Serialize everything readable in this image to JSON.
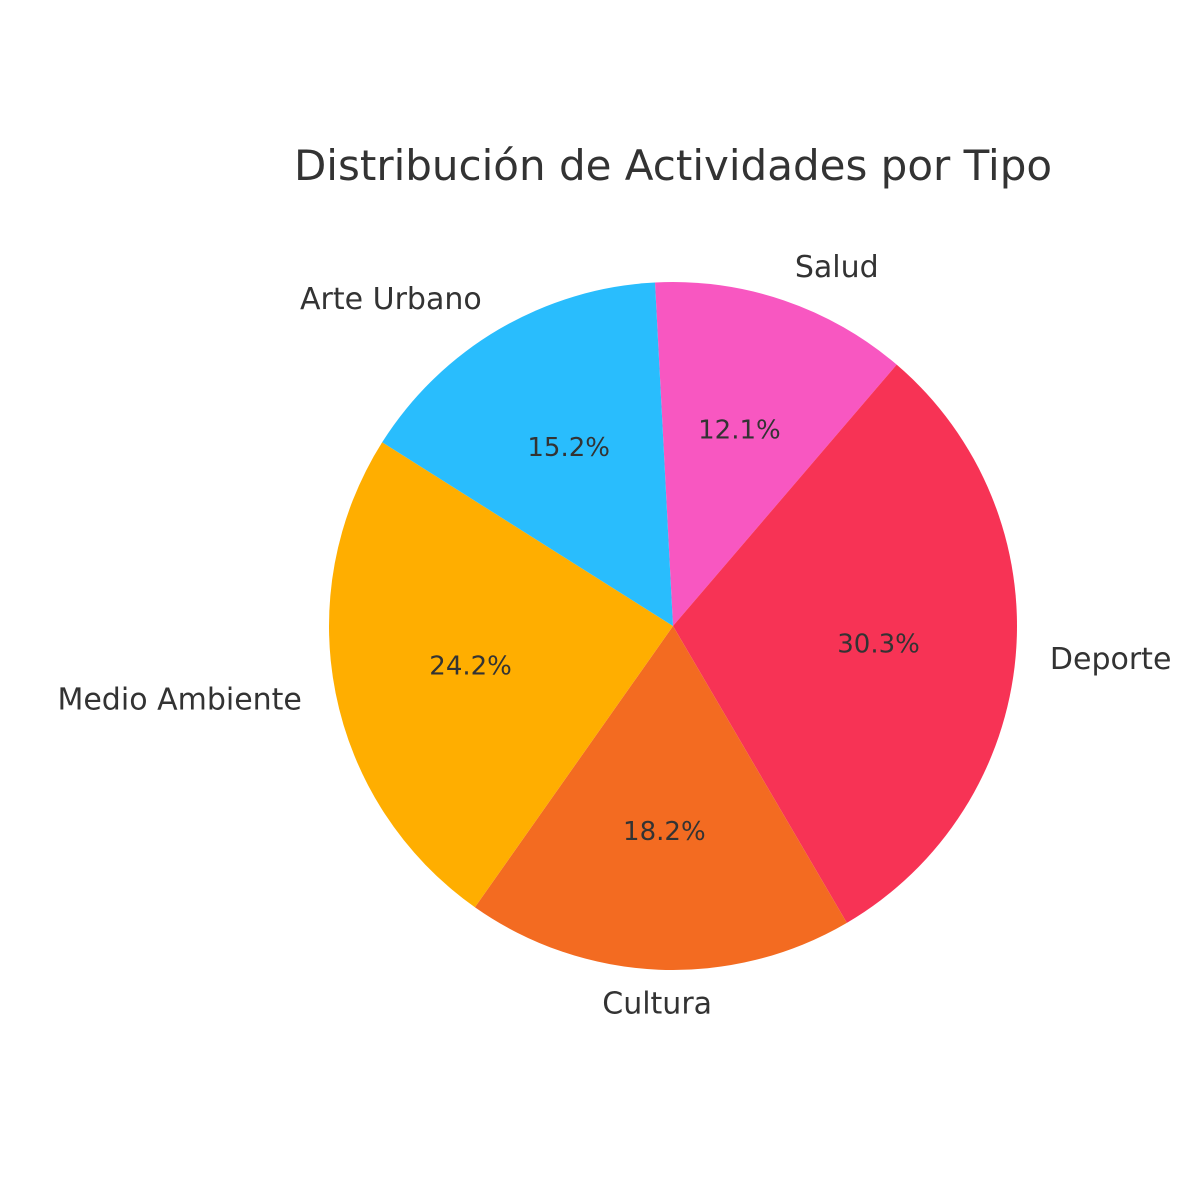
{
  "chart_data": {
    "type": "pie",
    "title": "Distribución de Actividades por Tipo",
    "start_angle_deg": 93,
    "direction": "clockwise",
    "slices": [
      {
        "label": "Salud",
        "value": 12.1,
        "pct_label": "12.1%",
        "color": "#F857C1"
      },
      {
        "label": "Deporte",
        "value": 30.3,
        "pct_label": "30.3%",
        "color": "#F73355"
      },
      {
        "label": "Cultura",
        "value": 18.2,
        "pct_label": "18.2%",
        "color": "#F36B21"
      },
      {
        "label": "Medio Ambiente",
        "value": 24.2,
        "pct_label": "24.2%",
        "color": "#FFAE00"
      },
      {
        "label": "Arte Urbano",
        "value": 15.2,
        "pct_label": "15.2%",
        "color": "#29BDFD"
      }
    ],
    "legend": "none",
    "grid": false
  }
}
